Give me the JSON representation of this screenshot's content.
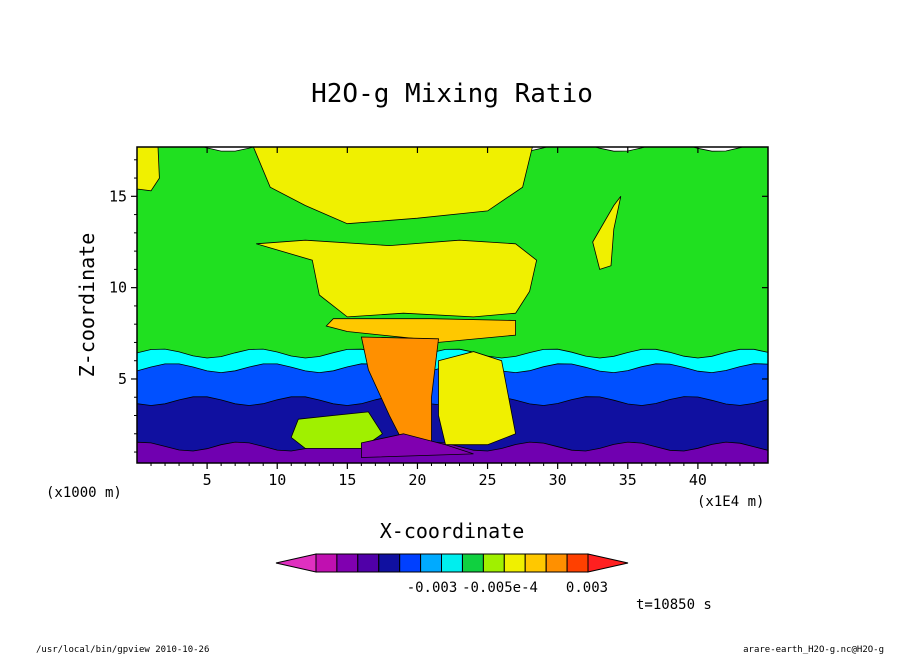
{
  "chart_data": {
    "type": "heatmap",
    "title": "H2O-g Mixing Ratio",
    "xlabel": "X-coordinate",
    "ylabel": "Z-coordinate",
    "x_unit_left": "(x1000 m)",
    "x_unit_right": "(x1E4 m)",
    "xlim": [
      0,
      45
    ],
    "ylim": [
      0.4,
      17.7
    ],
    "x_ticks": [
      "5",
      "10",
      "15",
      "20",
      "25",
      "30",
      "35",
      "40"
    ],
    "x_tick_values": [
      5,
      10,
      15,
      20,
      25,
      30,
      35,
      40
    ],
    "y_ticks": [
      "5",
      "10",
      "15"
    ],
    "y_tick_values": [
      5,
      10,
      15
    ],
    "colorbar": {
      "labels": [
        "-0.003",
        "-0.005e-4",
        "0.003"
      ],
      "colors": [
        "#e030c0",
        "#c010b0",
        "#8000b0",
        "#5000a8",
        "#1010a0",
        "#0040ff",
        "#00aaff",
        "#00eeee",
        "#10d040",
        "#a0f000",
        "#f0f000",
        "#ffc800",
        "#ff9000",
        "#ff4000",
        "#ff2020"
      ]
    },
    "time_label": "t=10850 s",
    "bands": [
      {
        "name": "purple",
        "color": "#7000b0",
        "z_top": 1.3
      },
      {
        "name": "dark-blue",
        "color": "#1010a0",
        "z_top": 3.8
      },
      {
        "name": "blue",
        "color": "#0050ff",
        "z_top": 5.6
      },
      {
        "name": "cyan",
        "color": "#00ffff",
        "z_top": 6.4
      },
      {
        "name": "green",
        "color": "#20e020",
        "z_top": 17.7
      }
    ]
  },
  "footer": {
    "left": "/usr/local/bin/gpview  2010-10-26",
    "right": "arare-earth_H2O-g.nc@H2O-g"
  }
}
